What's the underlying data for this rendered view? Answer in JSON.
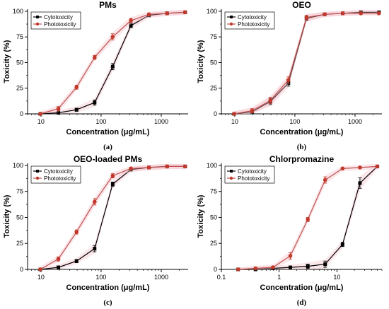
{
  "colors": {
    "cytotoxicity": "#000000",
    "phototoxicity": "#c0392b",
    "photo_line": "#c0504d",
    "error_shade": "#f4b6c2"
  },
  "chart_data": [
    {
      "id": "a",
      "type": "line",
      "title": "PMs",
      "panel_label": "(a)",
      "xlabel": "Concentration (μg/mL)",
      "ylabel": "Toxicity (%)",
      "xscale": "log",
      "xlim": [
        6,
        2800
      ],
      "ylim": [
        0,
        102
      ],
      "xticks": [
        10,
        100,
        1000
      ],
      "xtick_labels": [
        "10",
        "100",
        "1000"
      ],
      "yticks": [
        0,
        25,
        50,
        75,
        100
      ],
      "ytick_labels": [
        "0",
        "25",
        "50",
        "75",
        "100"
      ],
      "legend_position": "top-left",
      "grid": false,
      "series": [
        {
          "name": "Cytotoxicity",
          "x": [
            9.77,
            19.5,
            39.1,
            78.1,
            156,
            313,
            625,
            1250,
            2500
          ],
          "y": [
            0,
            1,
            4,
            11,
            46,
            86,
            96,
            98,
            99
          ],
          "err": [
            0.5,
            1,
            1.5,
            2.5,
            3,
            2,
            1,
            1,
            1
          ]
        },
        {
          "name": "Phototoxicity",
          "x": [
            9.77,
            19.5,
            39.1,
            78.1,
            156,
            313,
            625,
            1250,
            2500
          ],
          "y": [
            0,
            5,
            26,
            55,
            75,
            91,
            97,
            98,
            99
          ],
          "err": [
            0.5,
            2,
            2,
            2,
            3,
            2,
            1,
            1,
            1
          ]
        }
      ]
    },
    {
      "id": "b",
      "type": "line",
      "title": "OEO",
      "panel_label": "(b)",
      "xlabel": "Concentration (μg/mL)",
      "ylabel": "Toxicity (%)",
      "xscale": "log",
      "xlim": [
        6,
        2800
      ],
      "ylim": [
        0,
        102
      ],
      "xticks": [
        10,
        100,
        1000
      ],
      "xtick_labels": [
        "10",
        "100",
        "1000"
      ],
      "yticks": [
        0,
        25,
        50,
        75,
        100
      ],
      "ytick_labels": [
        "0",
        "25",
        "50",
        "75",
        "100"
      ],
      "legend_position": "top-left",
      "grid": false,
      "series": [
        {
          "name": "Cytotoxicity",
          "x": [
            9.77,
            19.5,
            39.1,
            78.1,
            156,
            313,
            625,
            1250,
            2500
          ],
          "y": [
            0,
            2,
            12,
            30,
            93,
            97,
            98,
            99,
            99
          ],
          "err": [
            1,
            2,
            3,
            3,
            2,
            1,
            1,
            1,
            1
          ]
        },
        {
          "name": "Phototoxicity",
          "x": [
            9.77,
            19.5,
            39.1,
            78.1,
            156,
            313,
            625,
            1250,
            2500
          ],
          "y": [
            0,
            3,
            13,
            33,
            94,
            97,
            98,
            98,
            98
          ],
          "err": [
            1,
            2,
            3,
            3,
            2,
            1,
            1,
            1,
            1
          ]
        }
      ]
    },
    {
      "id": "c",
      "type": "line",
      "title": "OEO-loaded PMs",
      "panel_label": "(c)",
      "xlabel": "Concentration (μg/mL)",
      "ylabel": "Toxicity (%)",
      "xscale": "log",
      "xlim": [
        6,
        2800
      ],
      "ylim": [
        0,
        102
      ],
      "xticks": [
        10,
        100,
        1000
      ],
      "xtick_labels": [
        "10",
        "100",
        "1000"
      ],
      "yticks": [
        0,
        25,
        50,
        75,
        100
      ],
      "ytick_labels": [
        "0",
        "25",
        "50",
        "75",
        "100"
      ],
      "legend_position": "top-left",
      "grid": false,
      "series": [
        {
          "name": "Cytotoxicity",
          "x": [
            9.77,
            19.5,
            39.1,
            78.1,
            156,
            313,
            625,
            1250,
            2500
          ],
          "y": [
            0,
            2,
            8,
            20,
            82,
            96,
            98,
            99,
            99
          ],
          "err": [
            0.5,
            1,
            1.5,
            3,
            2,
            1,
            1,
            1,
            1
          ]
        },
        {
          "name": "Phototoxicity",
          "x": [
            9.77,
            19.5,
            39.1,
            78.1,
            156,
            313,
            625,
            1250,
            2500
          ],
          "y": [
            0,
            10,
            36,
            65,
            90,
            97,
            98,
            99,
            99
          ],
          "err": [
            1,
            2,
            2,
            3,
            2,
            1,
            1,
            1,
            1
          ]
        }
      ]
    },
    {
      "id": "d",
      "type": "line",
      "title": "Chlorpromazine",
      "panel_label": "(d)",
      "xlabel": "Concentration (μg/mL)",
      "ylabel": "Toxicity (%)",
      "xscale": "log",
      "xlim": [
        0.1,
        60
      ],
      "ylim": [
        0,
        102
      ],
      "xticks": [
        0.1,
        1,
        10
      ],
      "xtick_labels": [
        "0.1",
        "1",
        "10"
      ],
      "yticks": [
        0,
        25,
        50,
        75,
        100
      ],
      "ytick_labels": [
        "0",
        "25",
        "50",
        "75",
        "100"
      ],
      "legend_position": "top-left",
      "grid": false,
      "series": [
        {
          "name": "Cytotoxicity",
          "x": [
            0.195,
            0.39,
            0.78,
            1.56,
            3.13,
            6.25,
            12.5,
            25,
            50
          ],
          "y": [
            0,
            0,
            1,
            2,
            3,
            5,
            24,
            83,
            99
          ],
          "err": [
            0.5,
            0.5,
            1,
            1,
            2,
            3,
            2,
            5,
            1
          ]
        },
        {
          "name": "Phototoxicity",
          "x": [
            0.195,
            0.39,
            0.78,
            1.56,
            3.13,
            6.25,
            12.5,
            25,
            50
          ],
          "y": [
            0,
            1,
            2,
            13,
            48,
            86,
            97,
            98,
            99
          ],
          "err": [
            0.5,
            1,
            1,
            3,
            2,
            3,
            1,
            1,
            1
          ]
        }
      ]
    }
  ]
}
